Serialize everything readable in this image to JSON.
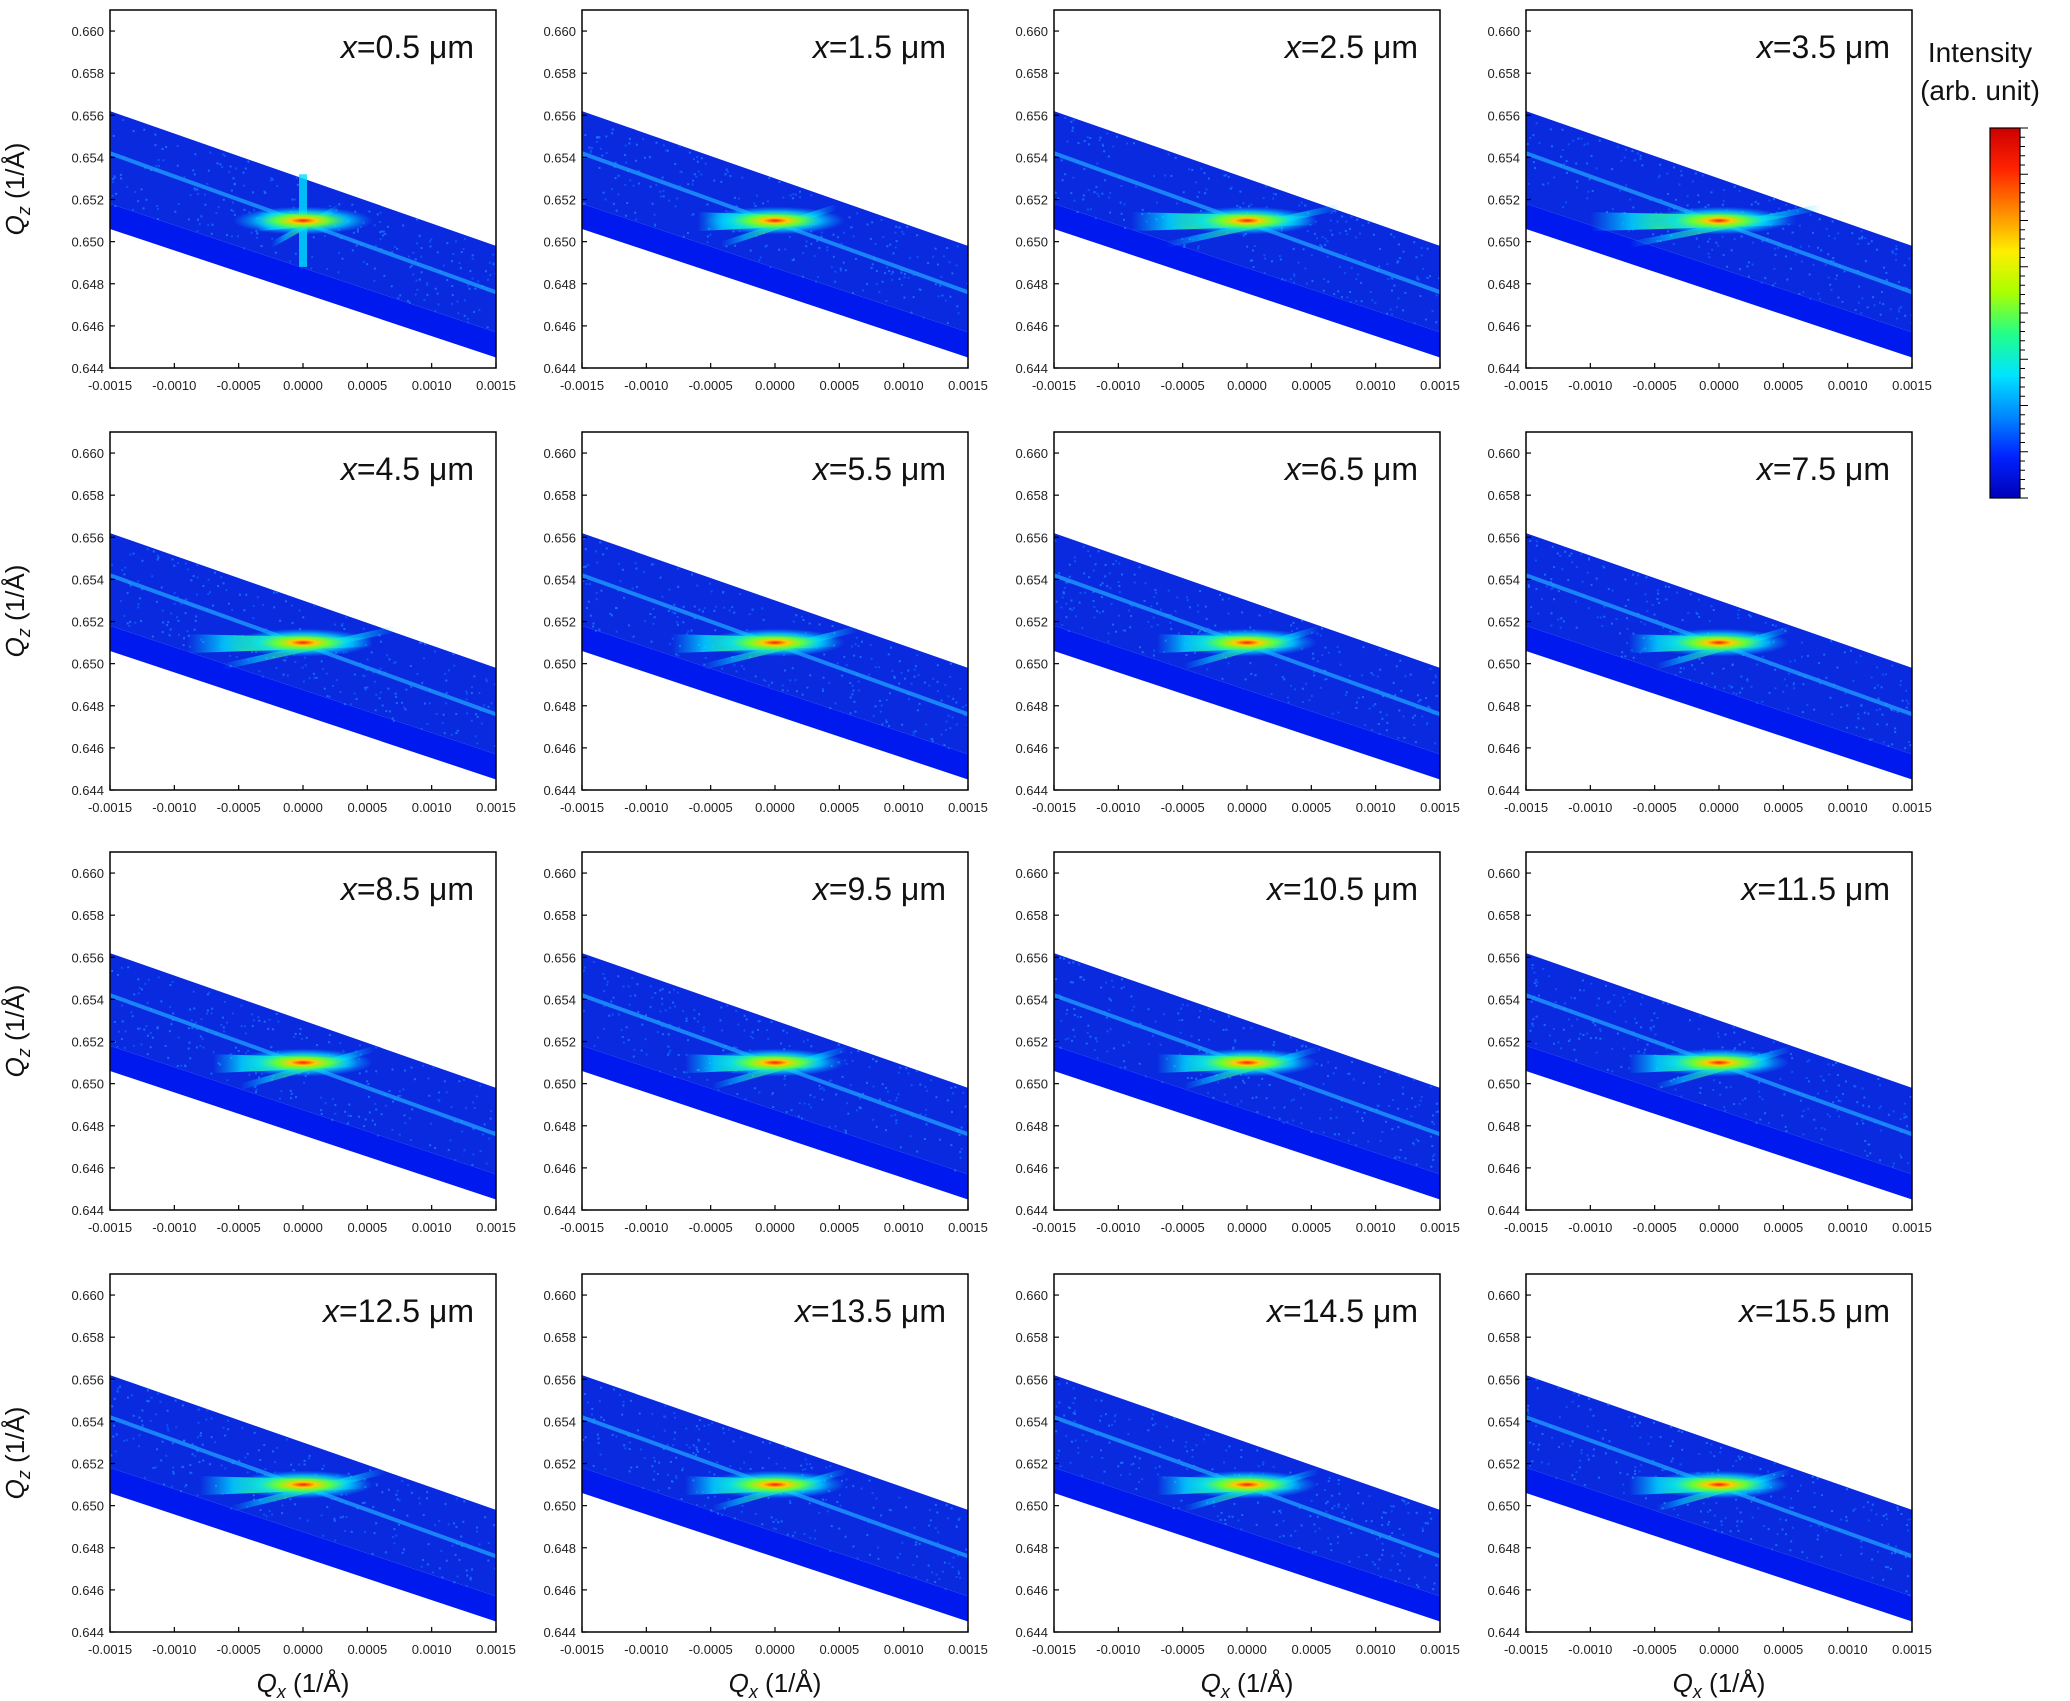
{
  "figure": {
    "colorbar": {
      "title_line1": "Intensity",
      "title_line2": "(arb. unit)",
      "colormap": [
        "#0000b8",
        "#0022ff",
        "#0088ff",
        "#00e5ff",
        "#22ff88",
        "#aaff00",
        "#ffee00",
        "#ff8800",
        "#ff2200",
        "#cc0000"
      ]
    },
    "band_color": "#1030e8",
    "background_band_color": "#0a2adf",
    "lower_strip_color": "#0019ee"
  },
  "chart_data": {
    "type": "heatmap",
    "layout": "4x4 grid of reciprocal space maps",
    "xlabel_symbol": "Q",
    "xlabel_sub": "x",
    "xlabel_unit": " (1/Å)",
    "ylabel_symbol": "Q",
    "ylabel_sub": "z",
    "ylabel_unit": " (1/Å)",
    "xlim": [
      -0.0015,
      0.0015
    ],
    "ylim": [
      0.644,
      0.661
    ],
    "xticks": [
      "-0.0015",
      "-0.0010",
      "-0.0005",
      "0.0000",
      "0.0005",
      "0.0010",
      "0.0015"
    ],
    "xtick_values": [
      -0.0015,
      -0.001,
      -0.0005,
      0,
      0.0005,
      0.001,
      0.0015
    ],
    "yticks": [
      "0.644",
      "0.646",
      "0.648",
      "0.650",
      "0.652",
      "0.654",
      "0.656",
      "0.658",
      "0.660"
    ],
    "ytick_values": [
      0.644,
      0.646,
      0.648,
      0.65,
      0.652,
      0.654,
      0.656,
      0.658,
      0.66
    ],
    "scan_band": {
      "upper_edge": [
        [
          -0.0015,
          0.6562
        ],
        [
          0.0015,
          0.6498
        ]
      ],
      "lower_edge": [
        [
          -0.0015,
          0.6506
        ],
        [
          0.0015,
          0.6445
        ]
      ],
      "streak_line": [
        [
          -0.0015,
          0.6542
        ],
        [
          0.0015,
          0.6476
        ]
      ]
    },
    "peak": {
      "qx": 0.0,
      "qz": 0.651
    },
    "panels": [
      {
        "label_var": "x",
        "label_value": "=0.5 μm",
        "streak_spread": 0.00035,
        "vertical_streak": true
      },
      {
        "label_var": "x",
        "label_value": "=1.5 μm",
        "streak_spread": 0.0006,
        "vertical_streak": false
      },
      {
        "label_var": "x",
        "label_value": "=2.5 μm",
        "streak_spread": 0.0009,
        "vertical_streak": false
      },
      {
        "label_var": "x",
        "label_value": "=3.5 μm",
        "streak_spread": 0.001,
        "vertical_streak": false
      },
      {
        "label_var": "x",
        "label_value": "=4.5 μm",
        "streak_spread": 0.0009,
        "vertical_streak": false
      },
      {
        "label_var": "x",
        "label_value": "=5.5 μm",
        "streak_spread": 0.0008,
        "vertical_streak": false
      },
      {
        "label_var": "x",
        "label_value": "=6.5 μm",
        "streak_spread": 0.0007,
        "vertical_streak": false
      },
      {
        "label_var": "x",
        "label_value": "=7.5 μm",
        "streak_spread": 0.0007,
        "vertical_streak": false
      },
      {
        "label_var": "x",
        "label_value": "=8.5 μm",
        "streak_spread": 0.0007,
        "vertical_streak": false
      },
      {
        "label_var": "x",
        "label_value": "=9.5 μm",
        "streak_spread": 0.0007,
        "vertical_streak": false
      },
      {
        "label_var": "x",
        "label_value": "=10.5 μm",
        "streak_spread": 0.0007,
        "vertical_streak": false
      },
      {
        "label_var": "x",
        "label_value": "=11.5 μm",
        "streak_spread": 0.0007,
        "vertical_streak": false
      },
      {
        "label_var": "x",
        "label_value": "=12.5 μm",
        "streak_spread": 0.0008,
        "vertical_streak": false
      },
      {
        "label_var": "x",
        "label_value": "=13.5 μm",
        "streak_spread": 0.0007,
        "vertical_streak": false
      },
      {
        "label_var": "x",
        "label_value": "=14.5 μm",
        "streak_spread": 0.0007,
        "vertical_streak": false
      },
      {
        "label_var": "x",
        "label_value": "=15.5 μm",
        "streak_spread": 0.0007,
        "vertical_streak": false
      }
    ]
  }
}
